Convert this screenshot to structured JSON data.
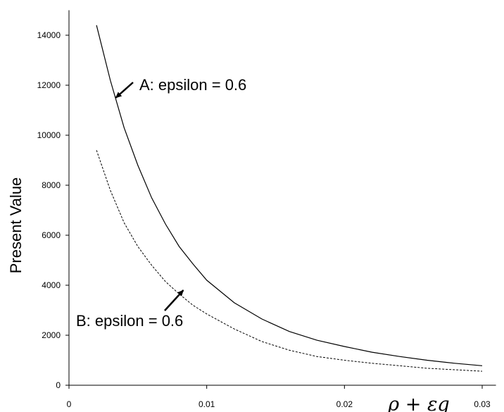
{
  "chart_data": {
    "type": "line",
    "title": "",
    "xlabel": "ρ + εg",
    "ylabel": "Present Value",
    "xlim": [
      0,
      0.031
    ],
    "ylim": [
      0,
      15000
    ],
    "grid": false,
    "x_ticks": [
      "0",
      "0.01",
      "0.02",
      "0.03"
    ],
    "y_ticks": [
      "0",
      "2000",
      "4000",
      "6000",
      "8000",
      "10000",
      "12000",
      "14000"
    ],
    "series": [
      {
        "name": "A: epsilon = 0.6",
        "style": "solid",
        "x": [
          0.002,
          0.003,
          0.004,
          0.005,
          0.006,
          0.007,
          0.008,
          0.009,
          0.01,
          0.012,
          0.014,
          0.016,
          0.018,
          0.02,
          0.022,
          0.024,
          0.026,
          0.028,
          0.03
        ],
        "y": [
          14400,
          12200,
          10300,
          8800,
          7500,
          6450,
          5550,
          4850,
          4200,
          3300,
          2650,
          2150,
          1800,
          1550,
          1320,
          1150,
          1000,
          880,
          780
        ]
      },
      {
        "name": "B: epsilon = 0.6",
        "style": "dashed",
        "x": [
          0.002,
          0.003,
          0.004,
          0.005,
          0.006,
          0.007,
          0.008,
          0.009,
          0.01,
          0.012,
          0.014,
          0.016,
          0.018,
          0.02,
          0.022,
          0.024,
          0.026,
          0.028,
          0.03
        ],
        "y": [
          9400,
          7800,
          6500,
          5550,
          4800,
          4150,
          3650,
          3200,
          2850,
          2250,
          1750,
          1400,
          1150,
          1000,
          880,
          780,
          680,
          620,
          560
        ]
      }
    ],
    "annotations": [
      {
        "text": "A: epsilon = 0.6",
        "arrow_to": {
          "x": 0.0034,
          "y": 11500
        }
      },
      {
        "text": "B: epsilon = 0.6",
        "arrow_to": {
          "x": 0.0083,
          "y": 3800
        }
      }
    ]
  }
}
